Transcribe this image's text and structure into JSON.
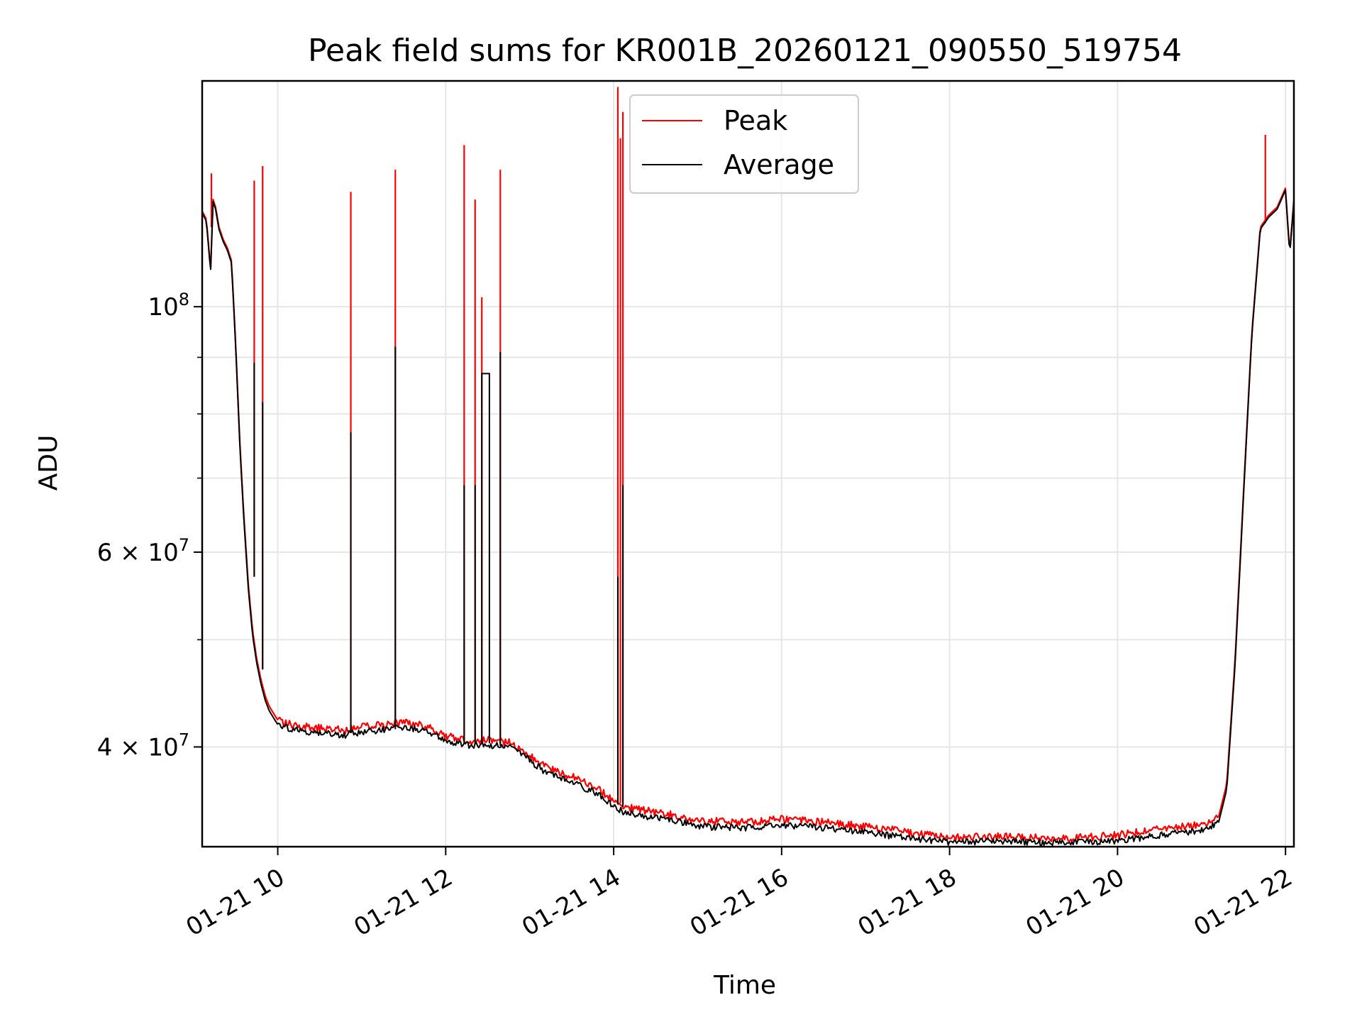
{
  "chart_data": {
    "type": "line",
    "title": "Peak field sums for KR001B_20260121_090550_519754",
    "xlabel": "Time",
    "ylabel": "ADU",
    "x_unit": "hours since 2026-01-21 00:00",
    "xlim": [
      9.1,
      22.1
    ],
    "ylim": [
      32500000,
      160000000
    ],
    "yscale": "log",
    "grid": true,
    "legend_position": "upper-center",
    "x_ticks": [
      {
        "value": 10,
        "label": "01-21 10"
      },
      {
        "value": 12,
        "label": "01-21 12"
      },
      {
        "value": 14,
        "label": "01-21 14"
      },
      {
        "value": 16,
        "label": "01-21 16"
      },
      {
        "value": 18,
        "label": "01-21 18"
      },
      {
        "value": 20,
        "label": "01-21 20"
      },
      {
        "value": 22,
        "label": "01-21 22"
      }
    ],
    "y_major_ticks": [
      {
        "value": 40000000,
        "mantissa": "4",
        "exponent": "7"
      },
      {
        "value": 60000000,
        "mantissa": "6",
        "exponent": "7"
      },
      {
        "value": 100000000,
        "mantissa": "",
        "exponent": "8"
      }
    ],
    "y_minor_ticks": [
      50000000,
      70000000,
      80000000,
      90000000
    ],
    "series": [
      {
        "name": "Peak",
        "color": "#ff0000",
        "x": [
          9.1,
          9.15,
          9.2,
          9.23,
          9.26,
          9.3,
          9.35,
          9.4,
          9.45,
          9.5,
          9.55,
          9.6,
          9.65,
          9.7,
          9.75,
          9.8,
          9.85,
          9.9,
          10.0,
          10.2,
          10.5,
          10.8,
          11.0,
          11.3,
          11.5,
          11.8,
          12.0,
          12.3,
          12.5,
          12.8,
          13.0,
          13.2,
          13.5,
          13.8,
          14.0,
          14.1,
          14.3,
          14.5,
          14.8,
          15.0,
          15.5,
          16.0,
          16.5,
          17.0,
          17.5,
          18.0,
          18.5,
          19.0,
          19.5,
          20.0,
          20.5,
          21.0,
          21.2,
          21.3,
          21.4,
          21.5,
          21.6,
          21.7,
          21.8,
          21.9,
          22.0,
          22.05,
          22.1
        ],
        "values": [
          122000000,
          120000000,
          108000000,
          125000000,
          123000000,
          118000000,
          115000000,
          113000000,
          110000000,
          92000000,
          75000000,
          64000000,
          56000000,
          51000000,
          48000000,
          46000000,
          44500000,
          43500000,
          42300000,
          41800000,
          41600000,
          41400000,
          41700000,
          41900000,
          42100000,
          41700000,
          40900000,
          40500000,
          40600000,
          40300000,
          39300000,
          38300000,
          37600000,
          36700000,
          35800000,
          35400000,
          35100000,
          34900000,
          34600000,
          34300000,
          34200000,
          34400000,
          34200000,
          33900000,
          33500000,
          33100000,
          33200000,
          33100000,
          33100000,
          33300000,
          33700000,
          34000000,
          34500000,
          37000000,
          48000000,
          68000000,
          95000000,
          118000000,
          121000000,
          123000000,
          128000000,
          112000000,
          125000000
        ],
        "spikes": [
          {
            "x": 9.21,
            "top": 132000000,
            "base": 118000000
          },
          {
            "x": 9.72,
            "top": 130000000,
            "base": 57000000
          },
          {
            "x": 9.82,
            "top": 134000000,
            "base": 47000000
          },
          {
            "x": 10.87,
            "top": 127000000,
            "base": 41500000
          },
          {
            "x": 11.4,
            "top": 133000000,
            "base": 41800000
          },
          {
            "x": 12.22,
            "top": 140000000,
            "base": 40500000
          },
          {
            "x": 12.35,
            "top": 125000000,
            "base": 40400000
          },
          {
            "x": 12.43,
            "top": 102000000,
            "base": 40500000
          },
          {
            "x": 12.65,
            "top": 133000000,
            "base": 40300000
          },
          {
            "x": 14.05,
            "top": 158000000,
            "base": 35800000
          },
          {
            "x": 14.08,
            "top": 142000000,
            "base": 35600000
          },
          {
            "x": 14.11,
            "top": 150000000,
            "base": 35500000
          },
          {
            "x": 21.76,
            "top": 143000000,
            "base": 119000000
          }
        ]
      },
      {
        "name": "Average",
        "color": "#000000",
        "x": [
          9.1,
          9.15,
          9.2,
          9.23,
          9.26,
          9.3,
          9.35,
          9.4,
          9.45,
          9.5,
          9.55,
          9.6,
          9.65,
          9.7,
          9.75,
          9.8,
          9.85,
          9.9,
          10.0,
          10.2,
          10.5,
          10.8,
          11.0,
          11.3,
          11.5,
          11.8,
          12.0,
          12.3,
          12.5,
          12.8,
          13.0,
          13.2,
          13.5,
          13.8,
          14.0,
          14.1,
          14.3,
          14.5,
          14.8,
          15.0,
          15.5,
          16.0,
          16.5,
          17.0,
          17.5,
          18.0,
          18.5,
          19.0,
          19.5,
          20.0,
          20.5,
          21.0,
          21.2,
          21.3,
          21.4,
          21.5,
          21.6,
          21.7,
          21.8,
          21.9,
          22.0,
          22.05,
          22.1
        ],
        "values": [
          121500000,
          119500000,
          107500000,
          124500000,
          122500000,
          117500000,
          114500000,
          112500000,
          109500000,
          91500000,
          74500000,
          63500000,
          55500000,
          50500000,
          47600000,
          45600000,
          44100000,
          43100000,
          41900000,
          41400000,
          41200000,
          41000000,
          41300000,
          41500000,
          41700000,
          41300000,
          40500000,
          40100000,
          40200000,
          39900000,
          38900000,
          37900000,
          37200000,
          36300000,
          35400000,
          35000000,
          34700000,
          34500000,
          34200000,
          33900000,
          33800000,
          34000000,
          33800000,
          33500000,
          33100000,
          32800000,
          32900000,
          32800000,
          32800000,
          32900000,
          33300000,
          33600000,
          34100000,
          36600000,
          47500000,
          67500000,
          94500000,
          117500000,
          120500000,
          122500000,
          127500000,
          111500000,
          124500000
        ],
        "spikes": [
          {
            "x": 9.72,
            "top": 89000000,
            "base": 57000000
          },
          {
            "x": 9.82,
            "top": 82000000,
            "base": 47000000
          },
          {
            "x": 10.87,
            "top": 77000000,
            "base": 41300000
          },
          {
            "x": 11.4,
            "top": 92000000,
            "base": 41500000
          },
          {
            "x": 12.22,
            "top": 69000000,
            "base": 40300000
          },
          {
            "x": 12.35,
            "top": 69000000,
            "base": 40200000
          },
          {
            "x": 12.65,
            "top": 91000000,
            "base": 40100000
          },
          {
            "x": 14.05,
            "top": 57000000,
            "base": 35500000
          },
          {
            "x": 14.11,
            "top": 69000000,
            "base": 35300000
          }
        ],
        "plateaus": [
          {
            "x_start": 12.43,
            "x_end": 12.52,
            "value": 87000000,
            "base": 40300000
          }
        ]
      }
    ]
  }
}
